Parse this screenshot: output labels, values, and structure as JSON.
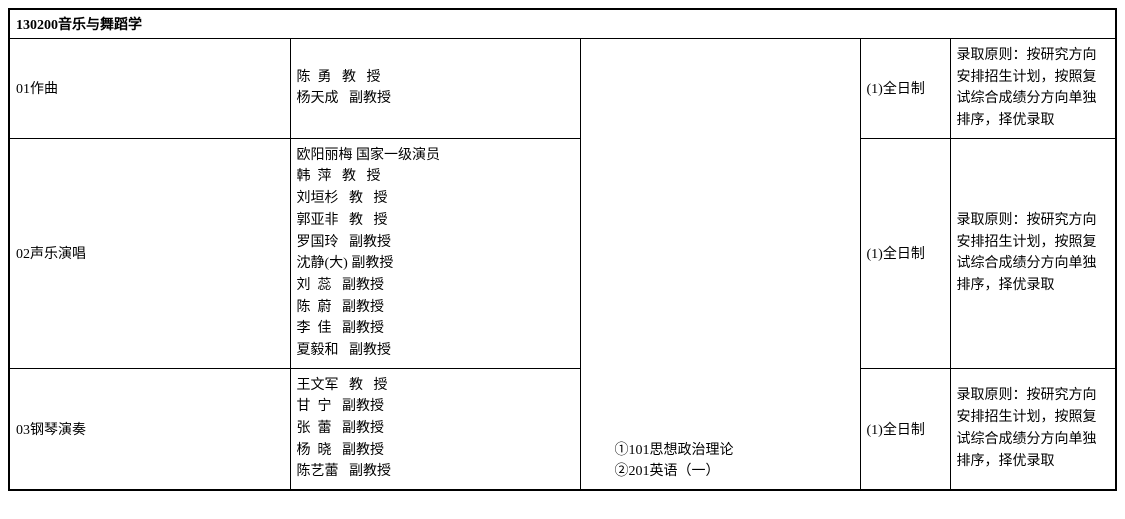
{
  "header": "130200音乐与舞蹈学",
  "exam_block": "①101思想政治理论\n②201英语（一）",
  "rows": [
    {
      "code": "01作曲",
      "faculty": [
        "陈  勇   教   授",
        "杨天成   副教授"
      ],
      "mode": "(1)全日制",
      "note": "录取原则：按研究方向安排招生计划，按照复试综合成绩分方向单独排序，择优录取"
    },
    {
      "code": "02声乐演唱",
      "faculty": [
        "欧阳丽梅 国家一级演员",
        "韩  萍   教   授",
        "刘垣杉   教   授",
        "郭亚非   教   授",
        "罗国玲   副教授",
        "沈静(大) 副教授",
        "刘  蕊   副教授",
        "陈  蔚   副教授",
        "李  佳   副教授",
        "夏毅和   副教授"
      ],
      "mode": "(1)全日制",
      "note": "录取原则：按研究方向安排招生计划，按照复试综合成绩分方向单独排序，择优录取"
    },
    {
      "code": "03钢琴演奏",
      "faculty": [
        "王文军   教   授",
        "甘  宁   副教授",
        "张  蕾   副教授",
        "杨  晓   副教授",
        "陈艺蕾   副教授"
      ],
      "mode": "(1)全日制",
      "note": "录取原则：按研究方向安排招生计划，按照复试综合成绩分方向单独排序，择优录取"
    }
  ]
}
